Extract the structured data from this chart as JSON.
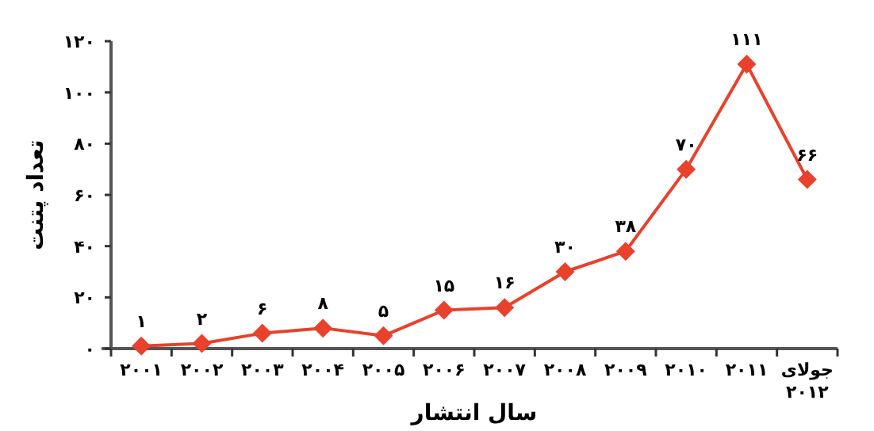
{
  "chart_data": {
    "type": "line",
    "xlabel": "سال انتشار",
    "ylabel": "تعداد پتنت",
    "categories": [
      "۲۰۰۱",
      "۲۰۰۲",
      "۲۰۰۳",
      "۲۰۰۴",
      "۲۰۰۵",
      "۲۰۰۶",
      "۲۰۰۷",
      "۲۰۰۸",
      "۲۰۰۹",
      "۲۰۱۰",
      "۲۰۱۱",
      "جولای ۲۰۱۲"
    ],
    "series": [
      {
        "color": "#e8412c",
        "values": [
          1,
          2,
          6,
          8,
          5,
          15,
          16,
          30,
          38,
          70,
          111,
          66
        ],
        "value_labels": [
          "۱",
          "۲",
          "۶",
          "۸",
          "۵",
          "۱۵",
          "۱۶",
          "۳۰",
          "۳۸",
          "۷۰",
          "۱۱۱",
          "۶۶"
        ]
      }
    ],
    "ylim": [
      0,
      120
    ],
    "yticks": [
      {
        "value": 0,
        "label": "۰"
      },
      {
        "value": 20,
        "label": "۲۰"
      },
      {
        "value": 40,
        "label": "۴۰"
      },
      {
        "value": 60,
        "label": "۶۰"
      },
      {
        "value": 80,
        "label": "۸۰"
      },
      {
        "value": 100,
        "label": "۱۰۰"
      },
      {
        "value": 120,
        "label": "۱۲۰"
      }
    ],
    "marker": "diamond",
    "line_style": "solid"
  }
}
